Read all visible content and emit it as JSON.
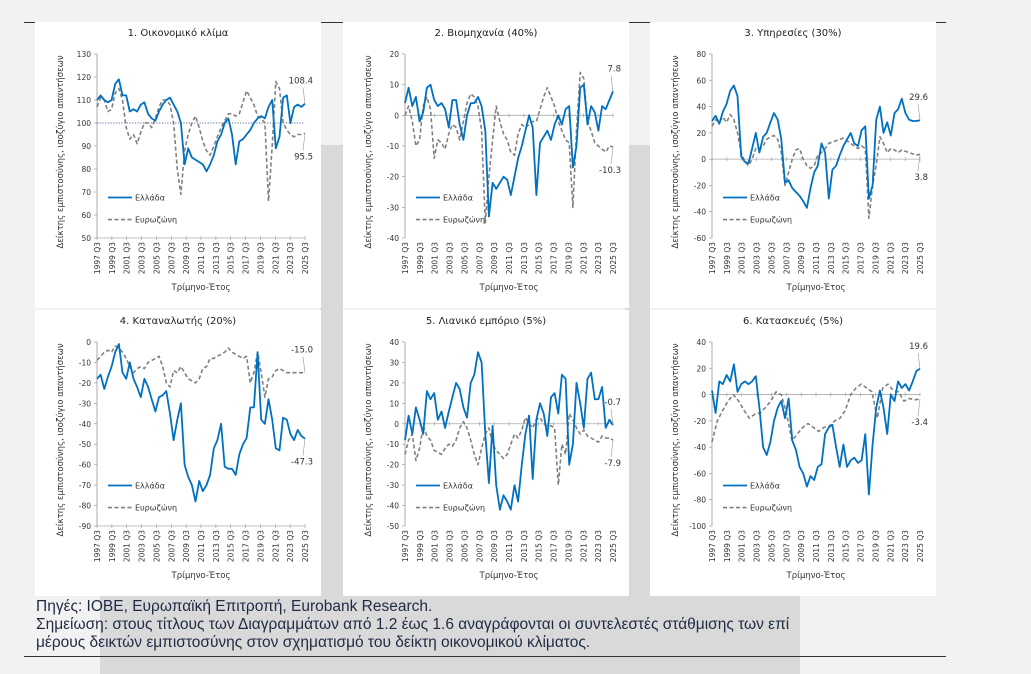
{
  "footer": {
    "sources": "Πηγές: ΙΟΒΕ, Ευρωπαϊκή Επιτροπή, Eurobank Research.",
    "note_line1": "Σημείωση: στους τίτλους των Διαγραμμάτων από 1.2 έως 1.6 αναγράφονται οι συντελεστές στάθμισης των επί",
    "note_line2": "μέρους δεικτών εμπιστοσύνης στον σχηματισμό του δείκτη οικονομικού κλίματος."
  },
  "chart_data": [
    {
      "type": "line",
      "title": "1. Οικονομικό κλίμα",
      "xlabel": "Τρίμηνο-Έτος",
      "ylabel": "Δείκτης εμπιστοσύνης, ισοζύγιο απαντήσεων",
      "x_ticks": [
        "1997 Q3",
        "1999 Q3",
        "2001 Q3",
        "2003 Q3",
        "2005 Q3",
        "2007 Q3",
        "2009 Q3",
        "2011 Q3",
        "2013 Q3",
        "2015 Q3",
        "2017 Q3",
        "2019 Q3",
        "2021 Q3",
        "2023 Q3",
        "2025 Q3"
      ],
      "ylim": [
        50,
        130
      ],
      "y_ticks": [
        50,
        60,
        70,
        80,
        90,
        100,
        110,
        120,
        130
      ],
      "reference_line": 100,
      "legend": [
        "Ελλάδα",
        "Ευρωζώνη"
      ],
      "legend_position": "bottom-left",
      "series": [
        {
          "name": "Ελλάδα",
          "color": "#0070c0",
          "style": "solid",
          "end_label": "108.4",
          "values": [
            110,
            112,
            110,
            109,
            110,
            117,
            119,
            112,
            112,
            105,
            106,
            105,
            108,
            109,
            104,
            102,
            101,
            105,
            108,
            110,
            111,
            108,
            105,
            100,
            82,
            89,
            85,
            84,
            83,
            82,
            79,
            82,
            86,
            92,
            95,
            100,
            102,
            95,
            82,
            92,
            93,
            95,
            97,
            100,
            102,
            103,
            102,
            107,
            110,
            89,
            94,
            111,
            112,
            100,
            107,
            108,
            107,
            108.4
          ]
        },
        {
          "name": "Ευρωζώνη",
          "color": "#808080",
          "style": "dashed",
          "end_label": "95.5",
          "values": [
            107,
            111,
            110,
            105,
            106,
            113,
            115,
            110,
            98,
            93,
            95,
            91,
            96,
            100,
            100,
            98,
            102,
            107,
            110,
            110,
            108,
            100,
            80,
            69,
            88,
            95,
            100,
            103,
            98,
            92,
            88,
            86,
            90,
            94,
            98,
            101,
            104,
            104,
            103,
            104,
            109,
            114,
            111,
            108,
            103,
            102,
            100,
            66,
            90,
            118,
            115,
            100,
            97,
            95,
            94,
            95,
            95,
            95.5
          ]
        }
      ]
    },
    {
      "type": "line",
      "title": "2. Βιομηχανία (40%)",
      "xlabel": "Τρίμηνο-Έτος",
      "ylabel": "Δείκτης εμπιστοσύνης, ισοζύγιο απαντήσεων",
      "x_ticks": [
        "1997 Q3",
        "1999 Q3",
        "2001 Q3",
        "2003 Q3",
        "2005 Q3",
        "2007 Q3",
        "2009 Q3",
        "2011 Q3",
        "2013 Q3",
        "2015 Q3",
        "2017 Q3",
        "2019 Q3",
        "2021 Q3",
        "2023 Q3",
        "2025 Q3"
      ],
      "ylim": [
        -40,
        20
      ],
      "y_ticks": [
        -40,
        -30,
        -20,
        -10,
        0,
        10,
        20
      ],
      "reference_line": 0,
      "legend": [
        "Ελλάδα",
        "Ευρωζώνη"
      ],
      "legend_position": "bottom-left",
      "series": [
        {
          "name": "Ελλάδα",
          "color": "#0070c0",
          "style": "solid",
          "end_label": "7.8",
          "values": [
            4,
            9,
            3,
            6,
            -2,
            1,
            9,
            10,
            5,
            3,
            4,
            2,
            -4,
            5,
            5,
            -3,
            -8,
            0,
            4,
            4,
            6,
            3,
            -5,
            -33,
            -22,
            -24,
            -22,
            -20,
            -21,
            -26,
            -20,
            -14,
            -10,
            -5,
            0,
            -4,
            -26,
            -9,
            -7,
            -5,
            -8,
            -3,
            0,
            -3,
            2,
            3,
            -17,
            -10,
            9,
            10,
            -3,
            3,
            1,
            -5,
            3,
            2,
            5,
            7.8
          ]
        },
        {
          "name": "Ευρωζώνη",
          "color": "#808080",
          "style": "dashed",
          "end_label": "-10.3",
          "values": [
            0,
            3,
            -2,
            -10,
            -8,
            3,
            6,
            2,
            -14,
            -8,
            -9,
            -11,
            -6,
            -3,
            -4,
            -8,
            -2,
            4,
            7,
            6,
            3,
            -5,
            -35,
            -20,
            -8,
            3,
            -2,
            -6,
            -8,
            -12,
            -13,
            -6,
            -3,
            -4,
            -3,
            -2,
            -2,
            2,
            6,
            9,
            6,
            3,
            -2,
            -5,
            -8,
            -9,
            -30,
            -5,
            14,
            12,
            -2,
            -5,
            -9,
            -10,
            -11,
            -12,
            -10,
            -10.3
          ]
        }
      ]
    },
    {
      "type": "line",
      "title": "3. Υπηρεσίες (30%)",
      "xlabel": "Τρίμηνο-Έτος",
      "ylabel": "Δείκτης εμπιστοσύνης, ισοζύγιο απαντήσεων",
      "x_ticks": [
        "1997 Q3",
        "1999 Q3",
        "2001 Q3",
        "2003 Q3",
        "2005 Q3",
        "2007 Q3",
        "2009 Q3",
        "2011 Q3",
        "2013 Q3",
        "2015 Q3",
        "2017 Q3",
        "2019 Q3",
        "2021 Q3",
        "2023 Q3",
        "2025 Q3"
      ],
      "ylim": [
        -60,
        80
      ],
      "y_ticks": [
        -60,
        -40,
        -20,
        0,
        20,
        40,
        60,
        80
      ],
      "reference_line": 0,
      "legend": [
        "Ελλάδα",
        "Ευρωζώνη"
      ],
      "legend_position": "bottom-left",
      "series": [
        {
          "name": "Ελλάδα",
          "color": "#0070c0",
          "style": "solid",
          "end_label": "29.6",
          "values": [
            29,
            33,
            27,
            36,
            42,
            52,
            56,
            48,
            2,
            -2,
            -3,
            8,
            20,
            5,
            17,
            20,
            28,
            35,
            30,
            15,
            -18,
            -16,
            -22,
            -25,
            -28,
            -32,
            -37,
            -22,
            -10,
            -5,
            12,
            5,
            -30,
            -8,
            -5,
            3,
            10,
            15,
            20,
            12,
            10,
            22,
            25,
            -30,
            -20,
            30,
            40,
            20,
            28,
            18,
            35,
            38,
            46,
            35,
            30,
            29,
            29,
            29.6
          ]
        },
        {
          "name": "Ευρωζώνη",
          "color": "#808080",
          "style": "dashed",
          "end_label": "3.8",
          "values": [
            25,
            30,
            28,
            32,
            28,
            34,
            30,
            20,
            5,
            -2,
            -5,
            0,
            8,
            7,
            10,
            15,
            17,
            18,
            15,
            5,
            -20,
            -10,
            0,
            7,
            8,
            0,
            -5,
            -7,
            -5,
            3,
            5,
            8,
            12,
            13,
            14,
            15,
            16,
            14,
            12,
            10,
            8,
            10,
            8,
            -45,
            -20,
            -5,
            17,
            12,
            5,
            8,
            7,
            5,
            7,
            6,
            5,
            4,
            3,
            3.8
          ]
        }
      ]
    },
    {
      "type": "line",
      "title": "4. Καταναλωτής (20%)",
      "xlabel": "Τρίμηνο-Έτος",
      "ylabel": "Δείκτης εμπιστοσύνης, ισοζύγιο απαντήσεων",
      "x_ticks": [
        "1997 Q3",
        "1999 Q3",
        "2001 Q3",
        "2003 Q3",
        "2005 Q3",
        "2007 Q3",
        "2009 Q3",
        "2011 Q3",
        "2013 Q3",
        "2015 Q3",
        "2017 Q3",
        "2019 Q3",
        "2021 Q3",
        "2023 Q3",
        "2025 Q3"
      ],
      "ylim": [
        -90,
        0
      ],
      "y_ticks": [
        -90,
        -80,
        -70,
        -60,
        -50,
        -40,
        -30,
        -20,
        -10,
        0
      ],
      "reference_line": null,
      "legend": [
        "Ελλάδα",
        "Ευρωζώνη"
      ],
      "legend_position": "bottom-left",
      "series": [
        {
          "name": "Ελλάδα",
          "color": "#0070c0",
          "style": "solid",
          "end_label": "-47.3",
          "values": [
            -18,
            -16,
            -23,
            -17,
            -12,
            -5,
            -1,
            -15,
            -18,
            -10,
            -18,
            -22,
            -27,
            -18,
            -22,
            -28,
            -34,
            -27,
            -26,
            -24,
            -35,
            -48,
            -38,
            -30,
            -60,
            -66,
            -70,
            -78,
            -68,
            -73,
            -70,
            -65,
            -52,
            -48,
            -40,
            -61,
            -62,
            -62,
            -65,
            -55,
            -50,
            -47,
            -32,
            -32,
            -5,
            -38,
            -40,
            -28,
            -38,
            -52,
            -53,
            -37,
            -38,
            -45,
            -48,
            -43,
            -46,
            -47.3
          ]
        },
        {
          "name": "Ευρωζώνη",
          "color": "#808080",
          "style": "dashed",
          "end_label": "-15.0",
          "values": [
            -9,
            -7,
            -5,
            -4,
            -5,
            -2,
            -3,
            -5,
            -8,
            -12,
            -15,
            -13,
            -12,
            -13,
            -10,
            -9,
            -8,
            -7,
            -12,
            -20,
            -22,
            -14,
            -15,
            -12,
            -15,
            -18,
            -19,
            -20,
            -18,
            -13,
            -12,
            -8,
            -8,
            -7,
            -6,
            -5,
            -3,
            -5,
            -6,
            -7,
            -8,
            -7,
            -20,
            -15,
            -5,
            -15,
            -27,
            -18,
            -17,
            -14,
            -13,
            -14,
            -15,
            -15,
            -15,
            -15,
            -15,
            -15.0
          ]
        }
      ]
    },
    {
      "type": "line",
      "title": "5. Λιανικό εμπόριο (5%)",
      "xlabel": "Τρίμηνο-Έτος",
      "ylabel": "Δείκτης εμπιστοσύνης, ισοζύγιο απαντήσεων",
      "x_ticks": [
        "1997 Q3",
        "1999 Q3",
        "2001 Q3",
        "2003 Q3",
        "2005 Q3",
        "2007 Q3",
        "2009 Q3",
        "2011 Q3",
        "2013 Q3",
        "2015 Q3",
        "2017 Q3",
        "2019 Q3",
        "2021 Q3",
        "2023 Q3",
        "2025 Q3"
      ],
      "ylim": [
        -50,
        40
      ],
      "y_ticks": [
        -50,
        -40,
        -30,
        -20,
        -10,
        0,
        10,
        20,
        30,
        40
      ],
      "reference_line": 0,
      "legend": [
        "Ελλάδα",
        "Ευρωζώνη"
      ],
      "legend_position": "bottom-left",
      "series": [
        {
          "name": "Ελλάδα",
          "color": "#0070c0",
          "style": "solid",
          "end_label": "-0.7",
          "values": [
            -8,
            4,
            -5,
            8,
            2,
            -5,
            16,
            12,
            15,
            2,
            6,
            -2,
            6,
            13,
            20,
            17,
            8,
            3,
            20,
            24,
            35,
            30,
            -5,
            -29,
            -1,
            -30,
            -42,
            -35,
            -38,
            -42,
            -30,
            -38,
            -20,
            -5,
            4,
            -27,
            2,
            10,
            5,
            -6,
            13,
            15,
            5,
            24,
            22,
            -20,
            -10,
            20,
            10,
            -2,
            22,
            25,
            12,
            12,
            18,
            -2,
            2,
            -0.7
          ]
        },
        {
          "name": "Ευρωζώνη",
          "color": "#808080",
          "style": "dashed",
          "end_label": "-7.9",
          "values": [
            -15,
            -8,
            -5,
            -18,
            -12,
            -1,
            -6,
            -8,
            -13,
            -14,
            -15,
            -12,
            -10,
            -11,
            -8,
            -2,
            1,
            -2,
            -8,
            -15,
            -20,
            -12,
            -5,
            -2,
            -10,
            -13,
            -15,
            -17,
            -15,
            -10,
            -5,
            -7,
            -3,
            3,
            0,
            -2,
            2,
            3,
            0,
            -1,
            -1,
            -2,
            -30,
            -10,
            -15,
            5,
            2,
            -2,
            -5,
            -3,
            -6,
            -7,
            -8,
            -9,
            -6,
            -7,
            -7,
            -7.9
          ]
        }
      ]
    },
    {
      "type": "line",
      "title": "6. Κατασκευές (5%)",
      "xlabel": "Τρίμηνο-Έτος",
      "ylabel": "Δείκτης εμπιστοσύνης, ισοζύγιο απαντήσεων",
      "x_ticks": [
        "1997 Q3",
        "1999 Q3",
        "2001 Q3",
        "2003 Q3",
        "2005 Q3",
        "2007 Q3",
        "2009 Q3",
        "2011 Q3",
        "2013 Q3",
        "2015 Q3",
        "2017 Q3",
        "2019 Q3",
        "2021 Q3",
        "2023 Q3",
        "2025 Q3"
      ],
      "ylim": [
        -100,
        40
      ],
      "y_ticks": [
        -100,
        -80,
        -60,
        -40,
        -20,
        0,
        20,
        40
      ],
      "reference_line": 0,
      "legend": [
        "Ελλάδα",
        "Ευρωζώνη"
      ],
      "legend_position": "bottom-left",
      "series": [
        {
          "name": "Ελλάδα",
          "color": "#0070c0",
          "style": "solid",
          "end_label": "19.6",
          "values": [
            3,
            -14,
            10,
            8,
            15,
            10,
            23,
            2,
            8,
            10,
            8,
            10,
            14,
            -10,
            -40,
            -46,
            -36,
            -20,
            -10,
            -5,
            -18,
            -3,
            -35,
            -42,
            -55,
            -60,
            -70,
            -62,
            -65,
            -55,
            -53,
            -30,
            -25,
            -23,
            -40,
            -55,
            -38,
            -55,
            -50,
            -48,
            -52,
            -50,
            -30,
            -76,
            -38,
            -10,
            3,
            -10,
            -30,
            0,
            -5,
            10,
            5,
            8,
            3,
            10,
            18,
            19.6
          ]
        },
        {
          "name": "Ευρωζώνη",
          "color": "#808080",
          "style": "dashed",
          "end_label": "-3.4",
          "values": [
            -36,
            -20,
            -12,
            -5,
            0,
            -5,
            -12,
            -18,
            -15,
            -14,
            -10,
            -5,
            2,
            0,
            -15,
            -35,
            -30,
            -25,
            -22,
            -25,
            -28,
            -25,
            -24,
            -20,
            -18,
            -12,
            0,
            5,
            8,
            5,
            2,
            -18,
            5,
            8,
            3,
            2,
            -5,
            -3,
            -4,
            -3.4
          ]
        }
      ]
    }
  ]
}
